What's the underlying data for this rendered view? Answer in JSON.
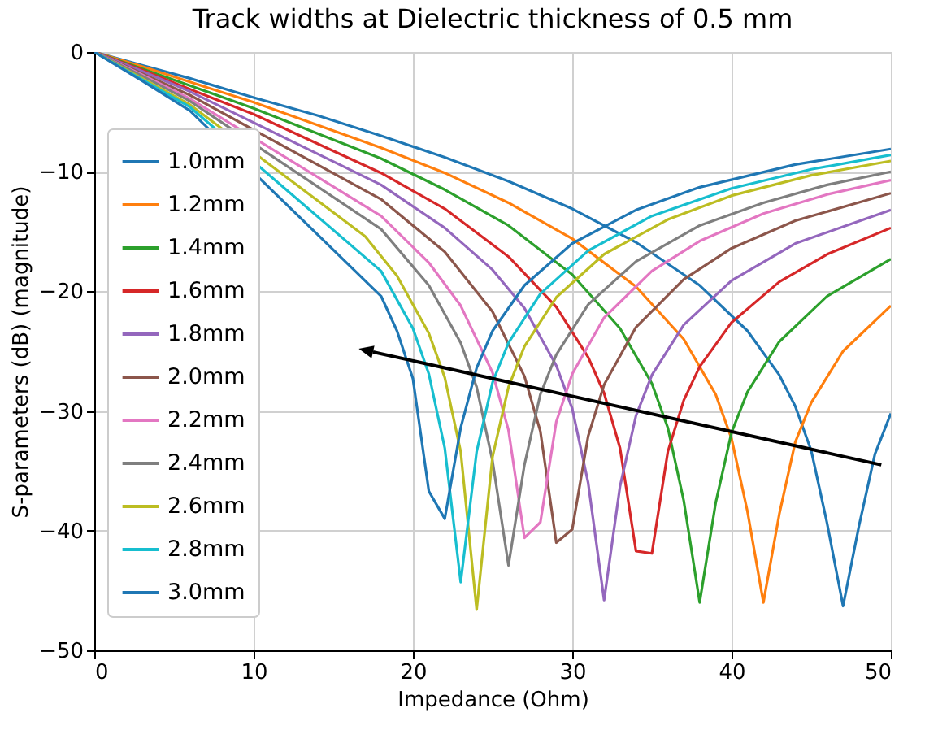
{
  "chart_data": {
    "type": "line",
    "title": "Track widths at Dielectric thickness of 0.5 mm",
    "xlabel": "Impedance (Ohm)",
    "ylabel": "S-parameters (dB) (magnitude)",
    "xlim": [
      0,
      50
    ],
    "ylim": [
      -50,
      0
    ],
    "xticks": [
      0,
      10,
      20,
      30,
      40,
      50
    ],
    "yticks": [
      -50,
      -40,
      -30,
      -20,
      -10,
      0
    ],
    "grid": true,
    "legend": "left",
    "series": [
      {
        "name": "1.0mm",
        "color": "#1f77b4",
        "x": [
          0,
          3,
          6,
          10,
          14,
          18,
          22,
          26,
          30,
          34,
          38,
          41,
          43,
          44,
          45,
          46,
          47,
          48,
          49,
          50
        ],
        "values": [
          0,
          -1.1,
          -2.2,
          -3.8,
          -5.3,
          -7.0,
          -8.8,
          -10.8,
          -13.1,
          -15.9,
          -19.5,
          -23.3,
          -27.0,
          -29.6,
          -33.3,
          -39.4,
          -46.3,
          -39.6,
          -33.6,
          -30.2
        ]
      },
      {
        "name": "1.2mm",
        "color": "#ff7f0e",
        "x": [
          0,
          3,
          6,
          10,
          18,
          22,
          26,
          30,
          34,
          37,
          39,
          40,
          41,
          42,
          43,
          44,
          45,
          47,
          50
        ],
        "values": [
          0,
          -1.2,
          -2.5,
          -4.2,
          -8.0,
          -10.1,
          -12.6,
          -15.6,
          -19.6,
          -24.0,
          -28.6,
          -32.3,
          -38.4,
          -46.0,
          -38.6,
          -32.6,
          -29.3,
          -25.0,
          -21.2
        ]
      },
      {
        "name": "1.4mm",
        "color": "#2ca02c",
        "x": [
          0,
          3,
          6,
          10,
          18,
          22,
          26,
          30,
          33,
          35,
          36,
          37,
          38,
          39,
          40,
          41,
          43,
          46,
          50
        ],
        "values": [
          0,
          -1.4,
          -2.8,
          -4.7,
          -8.9,
          -11.5,
          -14.5,
          -18.6,
          -23.1,
          -27.7,
          -31.4,
          -37.5,
          -46.0,
          -37.7,
          -31.8,
          -28.4,
          -24.2,
          -20.4,
          -17.3
        ]
      },
      {
        "name": "1.6mm",
        "color": "#d62728",
        "x": [
          0,
          3,
          6,
          10,
          18,
          22,
          26,
          29,
          31,
          32,
          33,
          34,
          35,
          36,
          37,
          38,
          40,
          43,
          46,
          50
        ],
        "values": [
          0,
          -1.5,
          -3.1,
          -5.2,
          -10.1,
          -13.1,
          -17.1,
          -21.3,
          -25.5,
          -28.5,
          -33.1,
          -41.7,
          -41.9,
          -33.4,
          -29.1,
          -26.3,
          -22.6,
          -19.2,
          -16.9,
          -14.7
        ]
      },
      {
        "name": "1.8mm",
        "color": "#9467bd",
        "x": [
          0,
          3,
          6,
          18,
          22,
          25,
          27,
          29,
          30,
          31,
          32,
          33,
          34,
          35,
          37,
          40,
          44,
          50
        ],
        "values": [
          0,
          -1.6,
          -3.3,
          -11.1,
          -14.7,
          -18.2,
          -21.4,
          -26.2,
          -29.8,
          -36.0,
          -45.8,
          -36.3,
          -30.4,
          -27.0,
          -22.8,
          -19.1,
          -16.0,
          -13.2
        ]
      },
      {
        "name": "2.0mm",
        "color": "#8c564b",
        "x": [
          0,
          3,
          6,
          18,
          22,
          25,
          27,
          28,
          29,
          30,
          31,
          32,
          34,
          37,
          40,
          44,
          50
        ],
        "values": [
          0,
          -1.8,
          -3.6,
          -12.3,
          -16.7,
          -21.7,
          -27.1,
          -31.7,
          -41.0,
          -39.9,
          -32.1,
          -27.8,
          -23.0,
          -19.0,
          -16.4,
          -14.1,
          -11.8
        ]
      },
      {
        "name": "2.2mm",
        "color": "#e377c2",
        "x": [
          0,
          3,
          6,
          18,
          21,
          23,
          25,
          26,
          27,
          28,
          29,
          30,
          32,
          35,
          38,
          42,
          46,
          50
        ],
        "values": [
          0,
          -1.9,
          -3.9,
          -13.7,
          -17.6,
          -21.2,
          -26.8,
          -31.6,
          -40.6,
          -39.3,
          -30.9,
          -26.9,
          -22.2,
          -18.3,
          -15.8,
          -13.5,
          -11.9,
          -10.7
        ]
      },
      {
        "name": "2.4mm",
        "color": "#7f7f7f",
        "x": [
          0,
          3,
          6,
          18,
          21,
          23,
          24,
          25,
          26,
          27,
          28,
          29,
          31,
          34,
          38,
          42,
          46,
          50
        ],
        "values": [
          0,
          -2.0,
          -4.1,
          -14.8,
          -19.5,
          -24.3,
          -28.0,
          -34.2,
          -42.9,
          -34.5,
          -28.6,
          -25.3,
          -21.1,
          -17.5,
          -14.5,
          -12.6,
          -11.1,
          -10.0
        ]
      },
      {
        "name": "2.6mm",
        "color": "#bcbd22",
        "x": [
          0,
          3,
          6,
          17,
          19,
          21,
          22,
          23,
          24,
          25,
          26,
          27,
          29,
          32,
          36,
          40,
          45,
          50
        ],
        "values": [
          0,
          -2.2,
          -4.4,
          -15.4,
          -18.7,
          -23.5,
          -27.2,
          -33.4,
          -46.6,
          -33.8,
          -28.0,
          -24.6,
          -20.5,
          -16.9,
          -14.0,
          -12.0,
          -10.3,
          -9.1
        ]
      },
      {
        "name": "2.8mm",
        "color": "#17becf",
        "x": [
          0,
          3,
          6,
          18,
          20,
          21,
          22,
          23,
          24,
          25,
          26,
          28,
          31,
          35,
          40,
          45,
          50
        ],
        "values": [
          0,
          -2.3,
          -4.6,
          -18.3,
          -23.1,
          -26.9,
          -33.1,
          -44.3,
          -33.4,
          -27.6,
          -24.3,
          -20.2,
          -16.6,
          -13.7,
          -11.4,
          -9.8,
          -8.6
        ]
      },
      {
        "name": "3.0mm",
        "color": "#1f77b4",
        "x": [
          0,
          3,
          6,
          18,
          19,
          20,
          21,
          22,
          23,
          24,
          25,
          27,
          30,
          34,
          38,
          44,
          50
        ],
        "values": [
          0,
          -2.4,
          -4.9,
          -20.4,
          -23.3,
          -27.3,
          -36.7,
          -39.0,
          -31.4,
          -26.4,
          -23.3,
          -19.5,
          -16.0,
          -13.2,
          -11.3,
          -9.4,
          -8.1
        ]
      }
    ]
  }
}
